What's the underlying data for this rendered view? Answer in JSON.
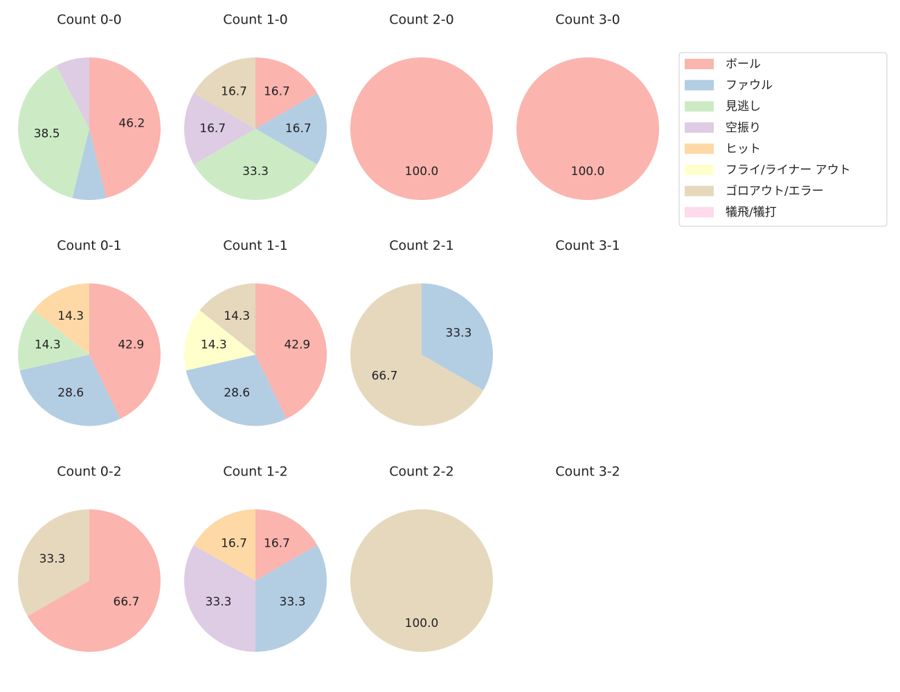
{
  "chart_data": [
    {
      "type": "pie",
      "title": "Count 0-0",
      "values": [
        46.2,
        7.7,
        38.5,
        7.7,
        0,
        0,
        0,
        0
      ],
      "value_labels": [
        "46.2",
        null,
        "38.5",
        null,
        null,
        null,
        null,
        null
      ]
    },
    {
      "type": "pie",
      "title": "Count 1-0",
      "values": [
        16.7,
        16.7,
        33.3,
        16.7,
        0,
        0,
        16.7,
        0
      ],
      "value_labels": [
        "16.7",
        "16.7",
        "33.3",
        "16.7",
        null,
        null,
        "16.7",
        null
      ]
    },
    {
      "type": "pie",
      "title": "Count 2-0",
      "values": [
        100,
        0,
        0,
        0,
        0,
        0,
        0,
        0
      ],
      "value_labels": [
        "100.0",
        null,
        null,
        null,
        null,
        null,
        null,
        null
      ]
    },
    {
      "type": "pie",
      "title": "Count 3-0",
      "values": [
        100,
        0,
        0,
        0,
        0,
        0,
        0,
        0
      ],
      "value_labels": [
        "100.0",
        null,
        null,
        null,
        null,
        null,
        null,
        null
      ]
    },
    {
      "type": "pie",
      "title": "Count 0-1",
      "values": [
        42.9,
        28.6,
        14.3,
        0,
        14.3,
        0,
        0,
        0
      ],
      "value_labels": [
        "42.9",
        "28.6",
        "14.3",
        null,
        "14.3",
        null,
        null,
        null
      ]
    },
    {
      "type": "pie",
      "title": "Count 1-1",
      "values": [
        42.9,
        28.6,
        0,
        0,
        0,
        14.3,
        14.3,
        0
      ],
      "value_labels": [
        "42.9",
        "28.6",
        null,
        null,
        null,
        "14.3",
        "14.3",
        null
      ]
    },
    {
      "type": "pie",
      "title": "Count 2-1",
      "values": [
        0,
        33.3,
        0,
        0,
        0,
        0,
        66.7,
        0
      ],
      "value_labels": [
        null,
        "33.3",
        null,
        null,
        null,
        null,
        "66.7",
        null
      ]
    },
    {
      "type": "pie",
      "title": "Count 3-1"
    },
    {
      "type": "pie",
      "title": "Count 0-2",
      "values": [
        66.7,
        0,
        0,
        0,
        0,
        0,
        33.3,
        0
      ],
      "value_labels": [
        "66.7",
        null,
        null,
        null,
        null,
        null,
        "33.3",
        null
      ]
    },
    {
      "type": "pie",
      "title": "Count 1-2",
      "values": [
        16.7,
        33.3,
        0,
        33.3,
        16.7,
        0,
        0,
        0
      ],
      "value_labels": [
        "16.7",
        "33.3",
        null,
        "33.3",
        "16.7",
        null,
        null,
        null
      ]
    },
    {
      "type": "pie",
      "title": "Count 2-2",
      "values": [
        0,
        0,
        0,
        0,
        0,
        0,
        100,
        0
      ],
      "value_labels": [
        null,
        null,
        null,
        null,
        null,
        null,
        "100.0",
        null
      ]
    },
    {
      "type": "pie",
      "title": "Count 3-2"
    }
  ],
  "legend": {
    "categories": [
      "ボール",
      "ファウル",
      "見逃し",
      "空振り",
      "ヒット",
      "フライ/ライナー アウト",
      "ゴロアウト/エラー",
      "犠飛/犠打"
    ],
    "colors": [
      "#fbb4ae",
      "#b3cde3",
      "#ccebc5",
      "#decbe4",
      "#fed9a6",
      "#ffffcc",
      "#e5d8bd",
      "#fddaec"
    ]
  }
}
